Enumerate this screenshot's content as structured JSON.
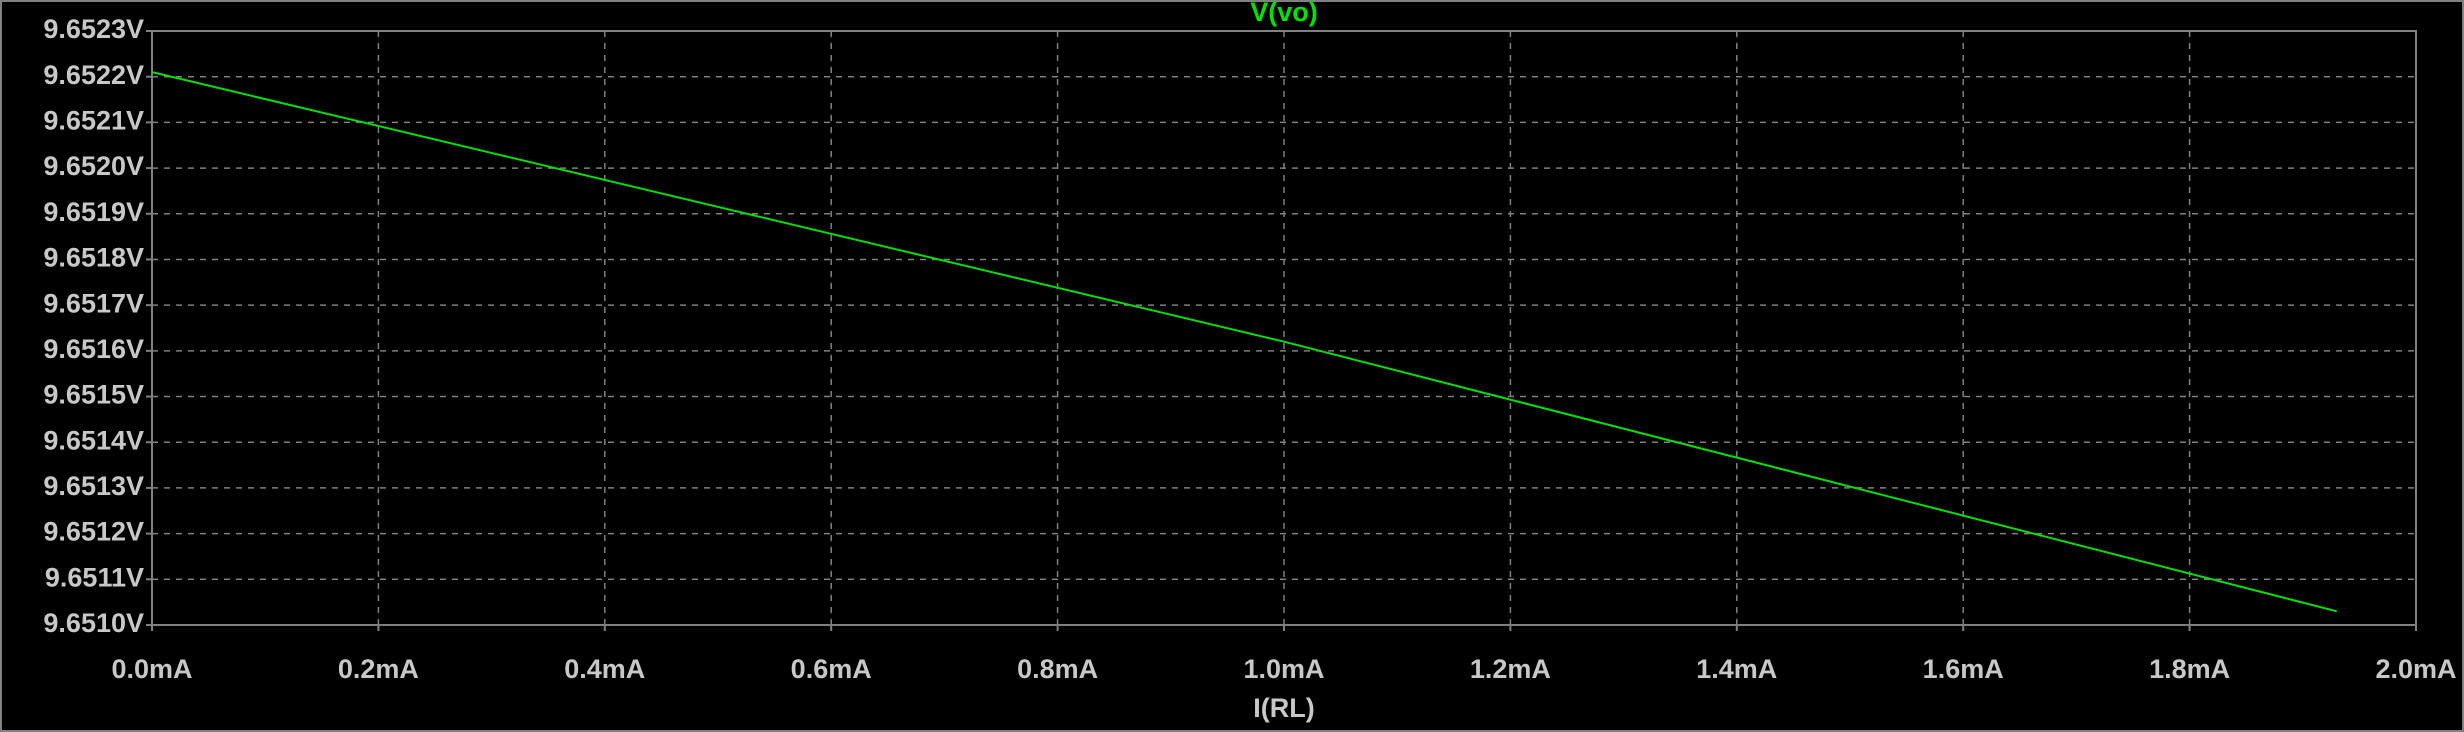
{
  "chart_data": {
    "type": "line",
    "title": "V(vo)",
    "x_label": "I(RL)",
    "x": [
      0,
      1.0,
      1.93
    ],
    "values": [
      9.65221,
      9.65162,
      9.65103
    ],
    "color": "#00e000",
    "xlim": [
      0,
      2.0
    ],
    "ylim": [
      9.651,
      9.6523
    ],
    "grid": true,
    "xticks": [
      {
        "value": 0,
        "label": "0.0mA"
      },
      {
        "value": 0.2,
        "label": "0.2mA"
      },
      {
        "value": 0.4,
        "label": "0.4mA"
      },
      {
        "value": 0.6,
        "label": "0.6mA"
      },
      {
        "value": 0.8,
        "label": "0.8mA"
      },
      {
        "value": 1.0,
        "label": "1.0mA"
      },
      {
        "value": 1.2,
        "label": "1.2mA"
      },
      {
        "value": 1.4,
        "label": "1.4mA"
      },
      {
        "value": 1.6,
        "label": "1.6mA"
      },
      {
        "value": 1.8,
        "label": "1.8mA"
      },
      {
        "value": 2.0,
        "label": "2.0mA"
      }
    ],
    "yticks": [
      {
        "value": 9.651,
        "label": "9.6510V"
      },
      {
        "value": 9.6511,
        "label": "9.6511V"
      },
      {
        "value": 9.6512,
        "label": "9.6512V"
      },
      {
        "value": 9.6513,
        "label": "9.6513V"
      },
      {
        "value": 9.6514,
        "label": "9.6514V"
      },
      {
        "value": 9.6515,
        "label": "9.6515V"
      },
      {
        "value": 9.6516,
        "label": "9.6516V"
      },
      {
        "value": 9.6517,
        "label": "9.6517V"
      },
      {
        "value": 9.6518,
        "label": "9.6518V"
      },
      {
        "value": 9.6519,
        "label": "9.6519V"
      },
      {
        "value": 9.652,
        "label": "9.6520V"
      },
      {
        "value": 9.6521,
        "label": "9.6521V"
      },
      {
        "value": 9.6522,
        "label": "9.6522V"
      },
      {
        "value": 9.6523,
        "label": "9.6523V"
      }
    ]
  }
}
